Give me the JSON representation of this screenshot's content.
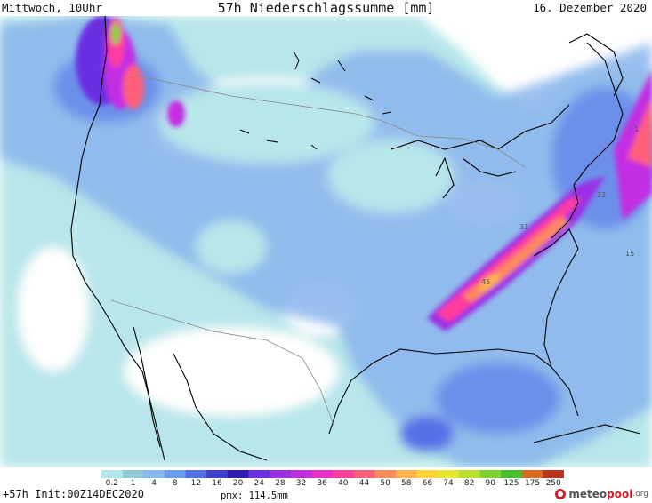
{
  "header": {
    "left": "Mittwoch, 10Uhr",
    "center": "57h Niederschlagssumme [mm]",
    "right": "16. Dezember 2020"
  },
  "scale": {
    "labels": [
      "0.2",
      "1",
      "4",
      "8",
      "12",
      "16",
      "20",
      "24",
      "28",
      "32",
      "36",
      "40",
      "44",
      "50",
      "58",
      "66",
      "74",
      "82",
      "90",
      "125",
      "175",
      "250"
    ],
    "colors": [
      "#b2e6ea",
      "#8fc9d6",
      "#86b7ec",
      "#6a9ced",
      "#5470e6",
      "#3f3fd2",
      "#2e1fb2",
      "#6a2fe2",
      "#9b2fe6",
      "#c22fe2",
      "#e82fc6",
      "#ff3d9d",
      "#ff5f78",
      "#ff8a5c",
      "#ffb24c",
      "#ffd43a",
      "#e6e62e",
      "#b8e02c",
      "#7ed42c",
      "#48c02c",
      "#d86a1e",
      "#b8341a"
    ]
  },
  "map_labels": [
    "31",
    "45",
    "22",
    "15",
    "1"
  ],
  "footer": {
    "left": "+57h Init:00Z14DEC2020",
    "pmx": "pmx: 114.5mm",
    "brand_main": "meteo",
    "brand_accent": "pool",
    "brand_suffix": ".org"
  },
  "colors": {
    "brand_red": "#d0202a",
    "brand_gray": "#555555"
  }
}
